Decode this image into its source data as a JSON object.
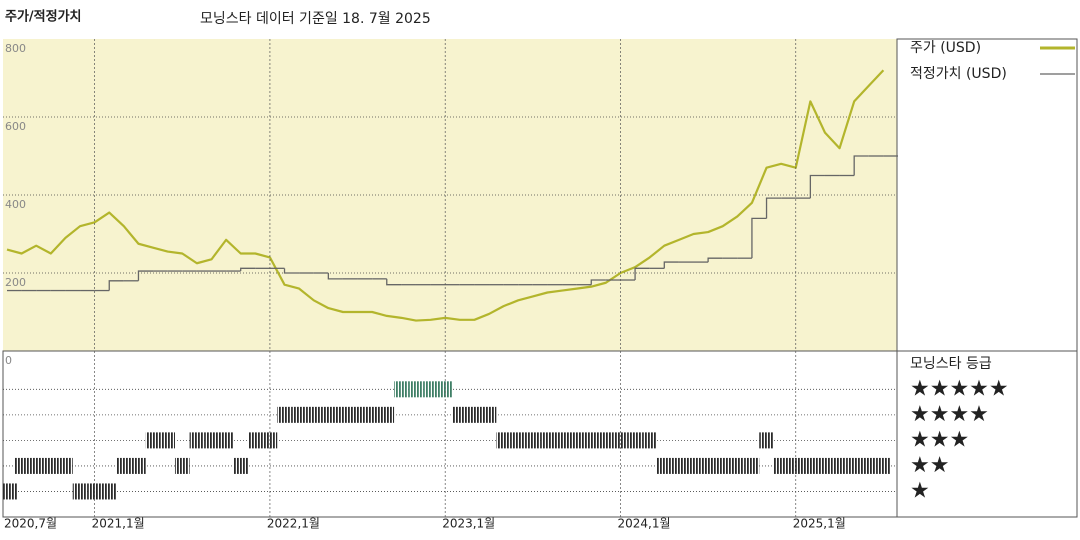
{
  "chart_data": [
    {
      "type": "line",
      "title": "주가/적정가치",
      "subtitle": "모닝스타 데이터 기준일 18. 7월 2025",
      "x": [
        "2020-07",
        "2020-08",
        "2020-09",
        "2020-10",
        "2020-11",
        "2020-12",
        "2021-01",
        "2021-02",
        "2021-03",
        "2021-04",
        "2021-05",
        "2021-06",
        "2021-07",
        "2021-08",
        "2021-09",
        "2021-10",
        "2021-11",
        "2021-12",
        "2022-01",
        "2022-02",
        "2022-03",
        "2022-04",
        "2022-05",
        "2022-06",
        "2022-07",
        "2022-08",
        "2022-09",
        "2022-10",
        "2022-11",
        "2022-12",
        "2023-01",
        "2023-02",
        "2023-03",
        "2023-04",
        "2023-05",
        "2023-06",
        "2023-07",
        "2023-08",
        "2023-09",
        "2023-10",
        "2023-11",
        "2023-12",
        "2024-01",
        "2024-02",
        "2024-03",
        "2024-04",
        "2024-05",
        "2024-06",
        "2024-07",
        "2024-08",
        "2024-09",
        "2024-10",
        "2024-11",
        "2024-12",
        "2025-01",
        "2025-02",
        "2025-03",
        "2025-04",
        "2025-05",
        "2025-06",
        "2025-07"
      ],
      "series": [
        {
          "name": "주가 (USD)",
          "color": "#b3b52c",
          "style": "line",
          "values": [
            260,
            250,
            270,
            250,
            290,
            320,
            330,
            355,
            320,
            275,
            265,
            255,
            250,
            225,
            235,
            285,
            250,
            250,
            240,
            170,
            160,
            130,
            110,
            100,
            100,
            100,
            90,
            85,
            78,
            80,
            85,
            80,
            80,
            95,
            115,
            130,
            140,
            150,
            155,
            160,
            165,
            175,
            200,
            215,
            240,
            270,
            285,
            300,
            305,
            320,
            345,
            380,
            470,
            480,
            470,
            640,
            560,
            520,
            640,
            680,
            720
          ]
        },
        {
          "name": "적정가치 (USD)",
          "color": "#666666",
          "style": "step",
          "values": [
            155,
            155,
            155,
            155,
            155,
            155,
            155,
            180,
            180,
            205,
            205,
            205,
            205,
            205,
            205,
            205,
            212,
            212,
            212,
            200,
            200,
            200,
            185,
            185,
            185,
            185,
            170,
            170,
            170,
            170,
            170,
            170,
            170,
            170,
            170,
            170,
            170,
            170,
            170,
            170,
            182,
            182,
            182,
            212,
            212,
            228,
            228,
            228,
            238,
            238,
            238,
            340,
            392,
            392,
            392,
            450,
            450,
            450,
            500,
            500,
            500
          ]
        }
      ],
      "xlim": [
        "2020-07",
        "2025-08"
      ],
      "ylim": [
        0,
        800
      ],
      "yticks": [
        0,
        200,
        400,
        600,
        800
      ],
      "grid": true,
      "background": "#f7f3cf",
      "legend": "right"
    },
    {
      "type": "rating",
      "title": "모닝스타 등급",
      "x": [
        "2020-07",
        "2020-08",
        "2020-09",
        "2020-10",
        "2020-11",
        "2020-12",
        "2021-01",
        "2021-02",
        "2021-03",
        "2021-04",
        "2021-05",
        "2021-06",
        "2021-07",
        "2021-08",
        "2021-09",
        "2021-10",
        "2021-11",
        "2021-12",
        "2022-01",
        "2022-02",
        "2022-03",
        "2022-04",
        "2022-05",
        "2022-06",
        "2022-07",
        "2022-08",
        "2022-09",
        "2022-10",
        "2022-11",
        "2022-12",
        "2023-01",
        "2023-02",
        "2023-03",
        "2023-04",
        "2023-05",
        "2023-06",
        "2023-07",
        "2023-08",
        "2023-09",
        "2023-10",
        "2023-11",
        "2023-12",
        "2024-01",
        "2024-02",
        "2024-03",
        "2024-04",
        "2024-05",
        "2024-06",
        "2024-07",
        "2024-08",
        "2024-09",
        "2024-10",
        "2024-11",
        "2024-12",
        "2025-01",
        "2025-02",
        "2025-03",
        "2025-04",
        "2025-05",
        "2025-06",
        "2025-07"
      ],
      "values": [
        1,
        2,
        2,
        2,
        2,
        1,
        1,
        1,
        2,
        2,
        3,
        3,
        2,
        3,
        3,
        3,
        2,
        3,
        3,
        4,
        4,
        4,
        4,
        4,
        4,
        4,
        4,
        5,
        5,
        5,
        5,
        4,
        4,
        4,
        3,
        3,
        3,
        3,
        3,
        3,
        3,
        3,
        3,
        3,
        3,
        2,
        2,
        2,
        2,
        2,
        2,
        2,
        3,
        2,
        2,
        2,
        2,
        2,
        2,
        2,
        2
      ],
      "colors": [
        "#2b2b2b",
        "#2b2b2b",
        "#2b2b2b",
        "#2b2b2b",
        "#3f7f66"
      ],
      "xlim": [
        "2020-07",
        "2025-08"
      ],
      "ylim": [
        0,
        6.5
      ],
      "yticks": [
        {
          "value": 5,
          "label": "★★★★★"
        },
        {
          "value": 4,
          "label": "★★★★"
        },
        {
          "value": 3,
          "label": "★★★"
        },
        {
          "value": 2,
          "label": "★★"
        },
        {
          "value": 1,
          "label": "★"
        }
      ],
      "xticks": [
        {
          "value": "2020-07",
          "label": "2020,7월"
        },
        {
          "value": "2021-01",
          "label": "2021,1월"
        },
        {
          "value": "2022-01",
          "label": "2022,1월"
        },
        {
          "value": "2023-01",
          "label": "2023,1월"
        },
        {
          "value": "2024-01",
          "label": "2024,1월"
        },
        {
          "value": "2025-01",
          "label": "2025,1월"
        }
      ]
    }
  ]
}
